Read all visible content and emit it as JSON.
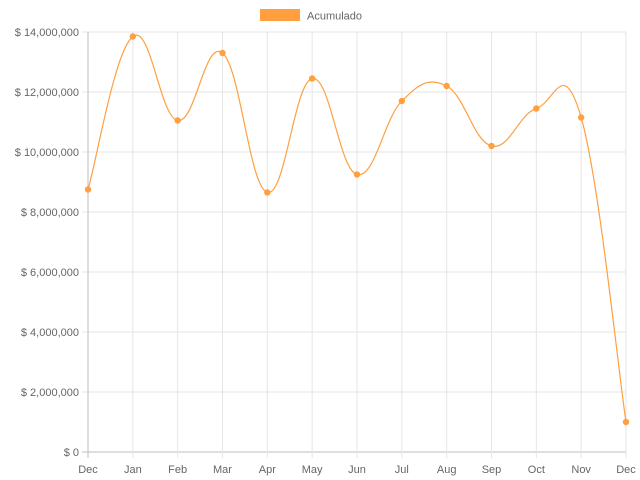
{
  "chart_data": {
    "type": "line",
    "categories": [
      "Dec",
      "Jan",
      "Feb",
      "Mar",
      "Apr",
      "May",
      "Jun",
      "Jul",
      "Aug",
      "Sep",
      "Oct",
      "Nov",
      "Dec"
    ],
    "series": [
      {
        "name": "Acumulado",
        "color": "#ff9f40",
        "values": [
          8750000,
          13850000,
          11050000,
          13300000,
          8650000,
          12450000,
          9250000,
          11700000,
          12200000,
          10200000,
          11450000,
          11150000,
          1000000
        ]
      }
    ],
    "ylim": [
      0,
      14000000
    ],
    "yticks": [
      0,
      2000000,
      4000000,
      6000000,
      8000000,
      10000000,
      12000000,
      14000000
    ],
    "ytick_labels": [
      "$ 0",
      "$ 2,000,000",
      "$ 4,000,000",
      "$ 6,000,000",
      "$ 8,000,000",
      "$ 10,000,000",
      "$ 12,000,000",
      "$ 14,000,000"
    ],
    "grid": true,
    "legend_position": "top-center",
    "curve": "smooth"
  }
}
